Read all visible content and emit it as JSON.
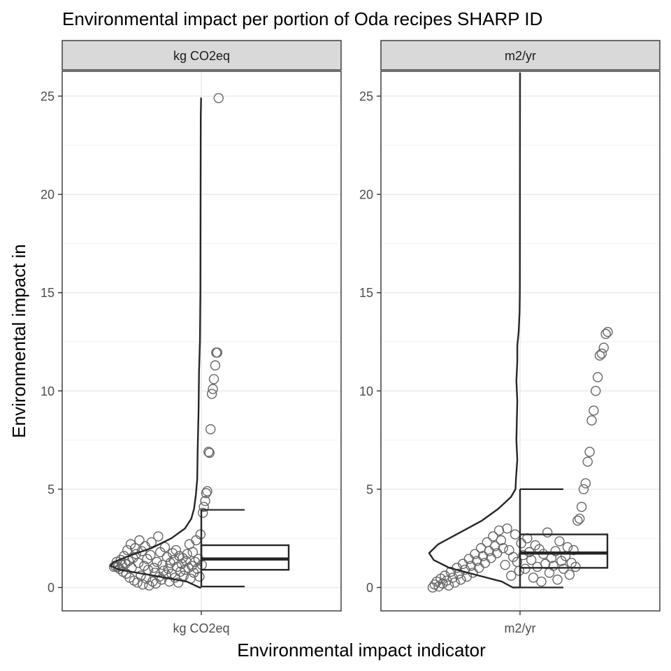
{
  "chart_data": {
    "type": "violin-boxplot-jitter",
    "title": "Environmental impact per portion of Oda recipes SHARP ID",
    "xlabel": "Environmental impact indicator",
    "ylabel": "Environmental impact in",
    "y_ticks": [
      0,
      5,
      10,
      15,
      20,
      25
    ],
    "ylim": [
      -1.2,
      26.2
    ],
    "grid": true,
    "facets": [
      {
        "name": "kg CO2eq",
        "category": "kg CO2eq",
        "box": {
          "min": 0.05,
          "q1": 0.9,
          "median": 1.45,
          "q3": 2.15,
          "max": 3.95
        },
        "density": [
          [
            0.0,
            0.02
          ],
          [
            0.3,
            0.16
          ],
          [
            0.6,
            0.52
          ],
          [
            0.9,
            0.9
          ],
          [
            1.1,
            1.0
          ],
          [
            1.3,
            0.96
          ],
          [
            1.6,
            0.8
          ],
          [
            2.0,
            0.55
          ],
          [
            2.5,
            0.33
          ],
          [
            3.0,
            0.18
          ],
          [
            3.5,
            0.11
          ],
          [
            4.0,
            0.08
          ],
          [
            4.7,
            0.06
          ],
          [
            5.5,
            0.045
          ],
          [
            7.0,
            0.04
          ],
          [
            9.0,
            0.03
          ],
          [
            11.0,
            0.025
          ],
          [
            12.5,
            0.015
          ],
          [
            15.0,
            0.01
          ],
          [
            20.0,
            0.008
          ],
          [
            24.0,
            0.006
          ],
          [
            24.9,
            0.002
          ]
        ],
        "points": [
          [
            1.05,
            0.0
          ],
          [
            1.1,
            0.04
          ],
          [
            1.3,
            0.08
          ],
          [
            1.05,
            0.12
          ],
          [
            0.95,
            0.17
          ],
          [
            1.4,
            0.2
          ],
          [
            1.15,
            0.24
          ],
          [
            0.8,
            0.27
          ],
          [
            1.6,
            0.3
          ],
          [
            1.2,
            0.34
          ],
          [
            0.7,
            0.37
          ],
          [
            1.9,
            0.4
          ],
          [
            1.35,
            0.44
          ],
          [
            0.5,
            0.47
          ],
          [
            2.2,
            0.5
          ],
          [
            1.0,
            0.53
          ],
          [
            1.5,
            0.57
          ],
          [
            0.35,
            0.6
          ],
          [
            2.0,
            0.63
          ],
          [
            1.7,
            0.66
          ],
          [
            0.25,
            0.7
          ],
          [
            1.25,
            0.73
          ],
          [
            2.4,
            0.76
          ],
          [
            0.6,
            0.8
          ],
          [
            1.85,
            0.83
          ],
          [
            0.15,
            0.86
          ],
          [
            1.1,
            0.9
          ],
          [
            2.1,
            0.93
          ],
          [
            0.45,
            0.96
          ],
          [
            1.45,
            0.99
          ],
          [
            0.9,
            1.02
          ],
          [
            0.1,
            1.05
          ],
          [
            1.65,
            1.09
          ],
          [
            2.3,
            1.12
          ],
          [
            0.3,
            1.15
          ],
          [
            1.0,
            1.19
          ],
          [
            0.75,
            1.22
          ],
          [
            0.2,
            1.25
          ],
          [
            1.3,
            1.28
          ],
          [
            2.6,
            1.32
          ],
          [
            0.55,
            1.35
          ],
          [
            1.8,
            1.38
          ],
          [
            0.4,
            1.42
          ],
          [
            1.15,
            1.45
          ],
          [
            0.85,
            1.48
          ],
          [
            2.05,
            1.52
          ],
          [
            0.65,
            1.55
          ],
          [
            1.55,
            1.58
          ],
          [
            0.95,
            1.62
          ],
          [
            0.3,
            1.65
          ],
          [
            1.25,
            1.68
          ],
          [
            0.7,
            1.72
          ],
          [
            1.75,
            1.75
          ],
          [
            1.4,
            1.78
          ],
          [
            0.5,
            1.82
          ],
          [
            1.9,
            1.85
          ],
          [
            1.05,
            1.88
          ],
          [
            0.25,
            1.92
          ],
          [
            1.6,
            1.95
          ],
          [
            0.8,
            1.98
          ],
          [
            1.2,
            2.02
          ],
          [
            1.5,
            2.05
          ],
          [
            0.6,
            2.08
          ],
          [
            0.9,
            2.12
          ],
          [
            1.35,
            2.15
          ],
          [
            1.7,
            2.18
          ],
          [
            1.0,
            2.22
          ],
          [
            2.2,
            2.25
          ],
          [
            0.45,
            2.28
          ],
          [
            1.1,
            2.32
          ],
          [
            1.8,
            2.35
          ],
          [
            0.75,
            2.38
          ],
          [
            1.3,
            2.42
          ],
          [
            2.4,
            2.45
          ],
          [
            0.95,
            2.48
          ],
          [
            1.45,
            2.52
          ],
          [
            0.55,
            2.55
          ],
          [
            2.7,
            2.58
          ],
          [
            1.15,
            2.62
          ],
          [
            3.8,
            2.65
          ],
          [
            4.1,
            2.68
          ],
          [
            4.4,
            2.72
          ],
          [
            4.8,
            2.75
          ],
          [
            4.9,
            2.78
          ],
          [
            6.9,
            2.82
          ],
          [
            6.85,
            2.85
          ],
          [
            8.05,
            2.88
          ],
          [
            9.85,
            2.92
          ],
          [
            10.1,
            2.95
          ],
          [
            10.6,
            2.98
          ],
          [
            11.3,
            3.02
          ],
          [
            11.95,
            3.05
          ],
          [
            11.95,
            3.08
          ],
          [
            24.9,
            3.12
          ]
        ]
      },
      {
        "name": "m2/yr",
        "category": "m2/yr",
        "box": {
          "min": 0.0,
          "q1": 1.0,
          "median": 1.75,
          "q3": 2.7,
          "max": 5.0
        },
        "density": [
          [
            0.0,
            0.08
          ],
          [
            0.3,
            0.2
          ],
          [
            0.6,
            0.45
          ],
          [
            1.0,
            0.78
          ],
          [
            1.4,
            0.95
          ],
          [
            1.75,
            1.0
          ],
          [
            2.2,
            0.9
          ],
          [
            2.8,
            0.66
          ],
          [
            3.4,
            0.42
          ],
          [
            4.0,
            0.24
          ],
          [
            4.6,
            0.1
          ],
          [
            5.0,
            0.05
          ],
          [
            5.5,
            0.045
          ],
          [
            6.5,
            0.03
          ],
          [
            7.5,
            0.04
          ],
          [
            8.5,
            0.035
          ],
          [
            9.5,
            0.03
          ],
          [
            10.5,
            0.04
          ],
          [
            11.5,
            0.03
          ],
          [
            12.3,
            0.03
          ],
          [
            13.0,
            0.015
          ],
          [
            14.0,
            0.005
          ],
          [
            15.0,
            0.002
          ],
          [
            20.0,
            0.001
          ],
          [
            26.2,
            0.0
          ]
        ],
        "points": [
          [
            0.0,
            0.0
          ],
          [
            0.15,
            0.06
          ],
          [
            0.3,
            0.12
          ],
          [
            0.05,
            0.18
          ],
          [
            0.45,
            0.24
          ],
          [
            0.2,
            0.3
          ],
          [
            0.6,
            0.36
          ],
          [
            0.35,
            0.42
          ],
          [
            0.1,
            0.48
          ],
          [
            0.8,
            0.54
          ],
          [
            0.5,
            0.6
          ],
          [
            0.25,
            0.66
          ],
          [
            1.0,
            0.72
          ],
          [
            0.7,
            0.78
          ],
          [
            0.4,
            0.84
          ],
          [
            1.2,
            0.9
          ],
          [
            0.9,
            0.96
          ],
          [
            0.55,
            1.02
          ],
          [
            1.45,
            1.08
          ],
          [
            1.1,
            1.14
          ],
          [
            0.75,
            1.2
          ],
          [
            1.7,
            1.26
          ],
          [
            1.35,
            1.32
          ],
          [
            1.0,
            1.38
          ],
          [
            2.0,
            1.44
          ],
          [
            1.6,
            1.5
          ],
          [
            1.25,
            1.56
          ],
          [
            2.3,
            1.62
          ],
          [
            1.85,
            1.68
          ],
          [
            1.5,
            1.74
          ],
          [
            2.6,
            1.8
          ],
          [
            2.1,
            1.86
          ],
          [
            1.75,
            1.92
          ],
          [
            2.9,
            1.98
          ],
          [
            2.4,
            2.04
          ],
          [
            2.0,
            2.1
          ],
          [
            1.15,
            2.16
          ],
          [
            3.0,
            2.22
          ],
          [
            1.9,
            2.28
          ],
          [
            0.6,
            2.34
          ],
          [
            1.55,
            2.4
          ],
          [
            2.7,
            2.46
          ],
          [
            1.3,
            2.52
          ],
          [
            0.85,
            2.58
          ],
          [
            2.25,
            2.64
          ],
          [
            1.65,
            2.7
          ],
          [
            0.95,
            2.76
          ],
          [
            2.5,
            2.82
          ],
          [
            1.8,
            2.88
          ],
          [
            1.4,
            2.94
          ],
          [
            0.5,
            3.0
          ],
          [
            2.15,
            3.06
          ],
          [
            1.05,
            3.12
          ],
          [
            1.95,
            3.18
          ],
          [
            0.3,
            3.24
          ],
          [
            1.7,
            3.3
          ],
          [
            1.2,
            3.36
          ],
          [
            2.8,
            3.42
          ],
          [
            0.75,
            3.48
          ],
          [
            1.5,
            3.54
          ],
          [
            1.1,
            3.6
          ],
          [
            1.85,
            3.66
          ],
          [
            0.4,
            3.72
          ],
          [
            2.35,
            3.78
          ],
          [
            1.35,
            3.84
          ],
          [
            0.95,
            3.9
          ],
          [
            1.6,
            3.96
          ],
          [
            2.05,
            4.02
          ],
          [
            0.65,
            4.08
          ],
          [
            1.25,
            4.14
          ],
          [
            1.9,
            4.2
          ],
          [
            1.05,
            4.26
          ],
          [
            3.4,
            4.32
          ],
          [
            3.5,
            4.38
          ],
          [
            4.1,
            4.44
          ],
          [
            5.0,
            4.5
          ],
          [
            5.3,
            4.56
          ],
          [
            6.4,
            4.62
          ],
          [
            6.9,
            4.68
          ],
          [
            8.5,
            4.74
          ],
          [
            9.0,
            4.8
          ],
          [
            10.0,
            4.86
          ],
          [
            10.7,
            4.92
          ],
          [
            11.8,
            4.98
          ],
          [
            11.9,
            5.04
          ],
          [
            12.2,
            5.1
          ],
          [
            12.9,
            5.16
          ],
          [
            13.0,
            5.22
          ]
        ]
      }
    ]
  }
}
